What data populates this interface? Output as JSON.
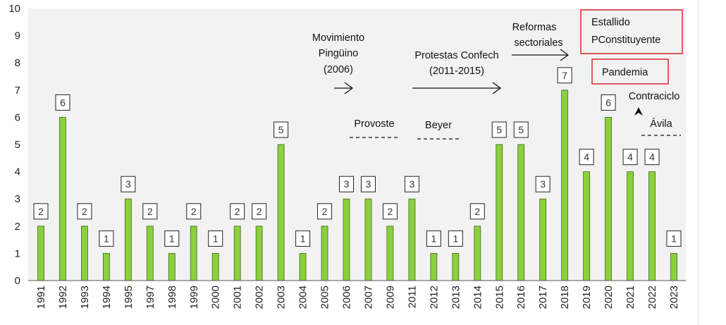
{
  "chart_data": {
    "type": "bar",
    "categories": [
      "1991",
      "1992",
      "1993",
      "1994",
      "1995",
      "1997",
      "1998",
      "1999",
      "2000",
      "2001",
      "2002",
      "2003",
      "2004",
      "2005",
      "2006",
      "2007",
      "2009",
      "2011",
      "2012",
      "2013",
      "2014",
      "2015",
      "2016",
      "2017",
      "2018",
      "2019",
      "2020",
      "2021",
      "2022",
      "2023"
    ],
    "values": [
      2,
      6,
      2,
      1,
      3,
      2,
      1,
      2,
      1,
      2,
      2,
      5,
      1,
      2,
      3,
      3,
      2,
      3,
      1,
      1,
      2,
      5,
      5,
      3,
      7,
      4,
      6,
      4,
      4,
      1
    ],
    "title": "",
    "xlabel": "",
    "ylabel": "",
    "ylim": [
      0,
      10
    ],
    "yticks": [
      "0",
      "1",
      "2",
      "3",
      "4",
      "5",
      "6",
      "7",
      "8",
      "9",
      "10"
    ],
    "bar_color": "#8ccf3f",
    "bar_edge_color": "#3f6b12",
    "plot_background": "#f2f2f2",
    "highlight_box_color": "#e0262a",
    "grid": false,
    "data_labels": true,
    "annotations": [
      {
        "name": "movimiento-pinguino",
        "lines": [
          "Movimiento",
          "Pingüino",
          "(2006)"
        ],
        "marker": "arrow"
      },
      {
        "name": "protestas-confech",
        "lines": [
          "Protestas Confech",
          "(2011-2015)"
        ],
        "marker": "arrow"
      },
      {
        "name": "reformas-sectoriales",
        "lines": [
          "Reformas",
          "sectoriales"
        ],
        "marker": "arrow"
      },
      {
        "name": "provoste",
        "lines": [
          "Provoste"
        ],
        "marker": "dashed-line"
      },
      {
        "name": "beyer",
        "lines": [
          "Beyer"
        ],
        "marker": "dashed-line"
      },
      {
        "name": "estallido",
        "lines": [
          "Estallido",
          "PConstituyente"
        ],
        "marker": "red-box"
      },
      {
        "name": "pandemia",
        "lines": [
          "Pandemia"
        ],
        "marker": "red-box"
      },
      {
        "name": "contraciclo",
        "lines": [
          "Contraciclo"
        ],
        "marker": "arrowhead"
      },
      {
        "name": "avila",
        "lines": [
          "Ávila"
        ],
        "marker": "dashed-line"
      }
    ]
  }
}
